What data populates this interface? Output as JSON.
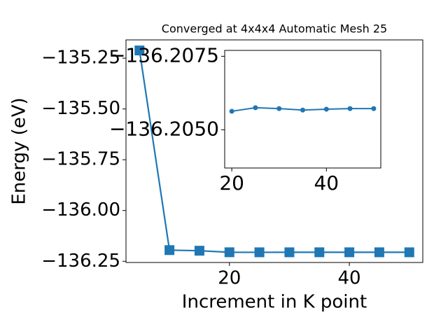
{
  "chart_data": [
    {
      "type": "line",
      "title": "Converged at 4x4x4 Automatic Mesh 25",
      "xlabel": "Increment in K point",
      "ylabel": "Energy (eV)",
      "x": [
        5,
        10,
        15,
        20,
        25,
        30,
        35,
        40,
        45,
        50
      ],
      "values": [
        -135.212,
        -136.195,
        -136.198,
        -136.20563,
        -136.20575,
        -136.20572,
        -136.20567,
        -136.2057,
        -136.20572,
        -136.20572
      ],
      "color": "#1f77b4",
      "marker": "square",
      "xlim": [
        2.75,
        52.25
      ],
      "ylim": [
        -136.256,
        -135.16
      ],
      "xticks": [
        20,
        40
      ],
      "yticks": [
        {
          "value": -135.25,
          "label": "−135.25"
        },
        {
          "value": -135.5,
          "label": "−135.50"
        },
        {
          "value": -135.75,
          "label": "−135.75"
        },
        {
          "value": -136,
          "label": "−136.00"
        },
        {
          "value": -136.25,
          "label": "−136.25"
        }
      ]
    },
    {
      "type": "line",
      "x": [
        20,
        25,
        30,
        35,
        40,
        45,
        50
      ],
      "values": [
        -136.20563,
        -136.20575,
        -136.20572,
        -136.20567,
        -136.2057,
        -136.20572,
        -136.20572
      ],
      "color": "#1f77b4",
      "marker": "circle",
      "xlim": [
        18.5,
        51.5
      ],
      "ylim": [
        -136.2037,
        -136.2077
      ],
      "xticks": [
        20,
        40
      ],
      "yticks": [
        {
          "value": -136.2075,
          "label": "−136.2075"
        },
        {
          "value": -136.205,
          "label": "−136.2050"
        }
      ]
    }
  ]
}
